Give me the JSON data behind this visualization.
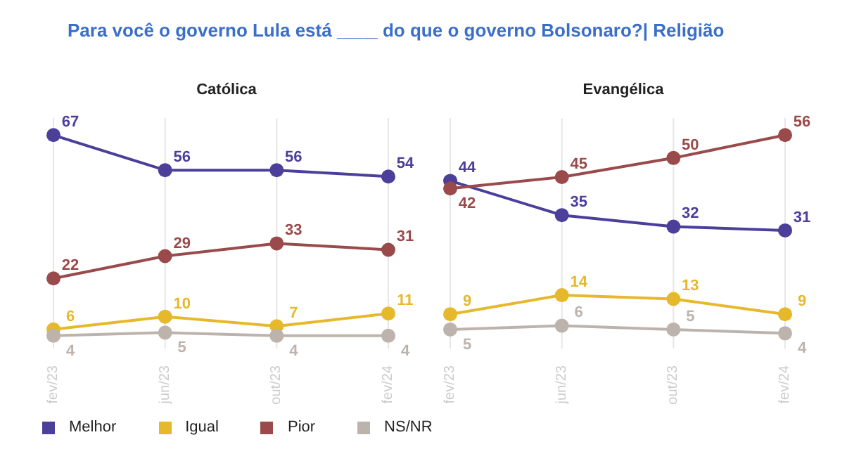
{
  "chart_data": [
    {
      "type": "line",
      "title": "Para você o governo Lula está ____ do que o governo Bolsonaro?| Religião",
      "subtitle": "Católica",
      "categories": [
        "fev/23",
        "jun/23",
        "out/23",
        "fev/24"
      ],
      "data_labels": true,
      "grid": "x",
      "marker": "circle",
      "legend": "bottom",
      "series": [
        {
          "name": "Melhor",
          "color": "#4b3f9a",
          "values": [
            67,
            56,
            56,
            54
          ]
        },
        {
          "name": "Igual",
          "color": "#e6b92c",
          "values": [
            6,
            10,
            7,
            11
          ]
        },
        {
          "name": "Pior",
          "color": "#9a4a4a",
          "values": [
            22,
            29,
            33,
            31
          ]
        },
        {
          "name": "NS/NR",
          "color": "#bdb3ad",
          "values": [
            4,
            5,
            4,
            4
          ]
        }
      ]
    },
    {
      "type": "line",
      "subtitle": "Evangélica",
      "categories": [
        "fev/23",
        "jun/23",
        "out/23",
        "fev/24"
      ],
      "data_labels": true,
      "grid": "x",
      "marker": "circle",
      "series": [
        {
          "color": "#4b3f9a",
          "values": [
            44,
            35,
            32,
            31
          ]
        },
        {
          "color": "#e6b92c",
          "values": [
            9,
            14,
            13,
            9
          ]
        },
        {
          "color": "#9a4a4a",
          "values": [
            42,
            45,
            50,
            56
          ]
        },
        {
          "color": "#bdb3ad",
          "values": [
            5,
            6,
            5,
            4
          ]
        }
      ]
    }
  ]
}
